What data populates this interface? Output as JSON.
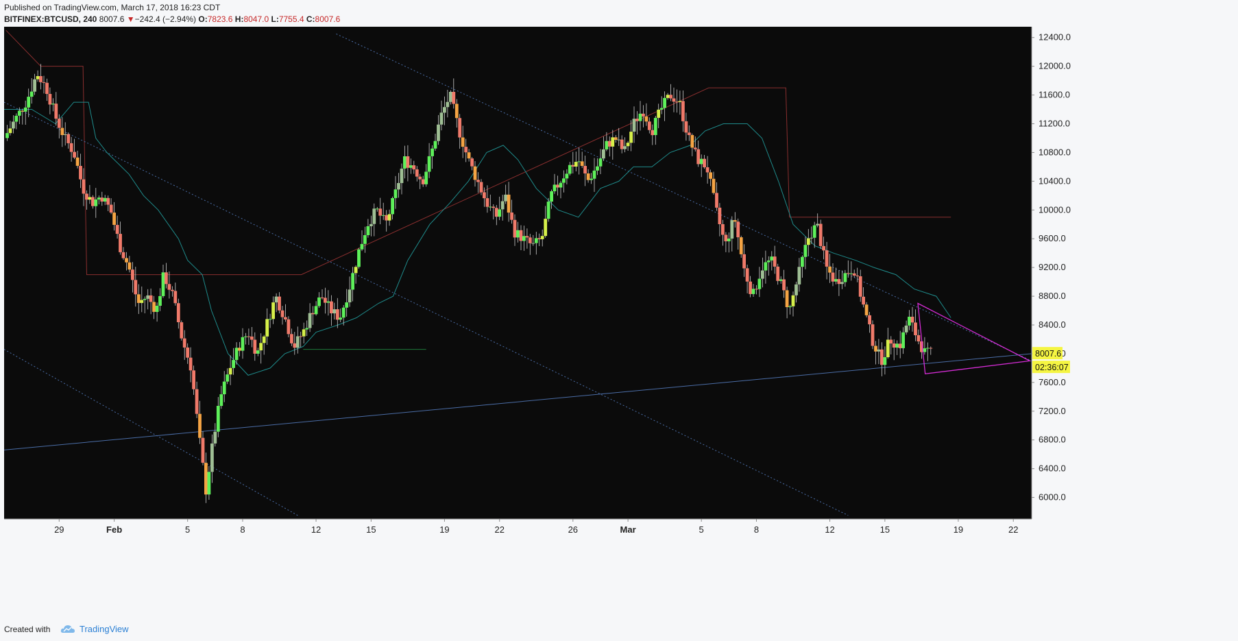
{
  "header": {
    "published": "Published on TradingView.com, March 17, 2018 16:23 CDT",
    "symbol": "BITFINEX:BTCUSD, 240",
    "last": "8007.6",
    "change_arrow": "▼",
    "change": "−242.4 (−2.94%)",
    "open_label": "O:",
    "open": "7823.6",
    "high_label": "H:",
    "high": "8047.0",
    "low_label": "L:",
    "low": "7755.4",
    "close_label": "C:",
    "close": "8007.6"
  },
  "footer": {
    "created_with": "Created with",
    "brand": "TradingView",
    "logo_icon": "tradingview-cloud-icon"
  },
  "colors": {
    "background": "#0b0b0b",
    "bull_strong": "#5ef05a",
    "bull_mid": "#d6f04a",
    "bull_pale": "#9fbf94",
    "bear": "#f07a6a",
    "bear_orange": "#f5a444",
    "cloud_line": "#1f8c8c",
    "channel_line": "#8b2f2f",
    "trend_blue": "#4b6ea8",
    "triangle": "#d62cd6",
    "price_tag": "#f5f542",
    "support_green": "#1f7a3a"
  },
  "chart_data": {
    "type": "candlestick",
    "symbol": "BITFINEX:BTCUSD",
    "timeframe": "240",
    "ylim": [
      5700,
      12550
    ],
    "y_ticks": [
      6000,
      6400,
      6800,
      7200,
      7600,
      8000,
      8400,
      8800,
      9200,
      9600,
      10000,
      10400,
      10800,
      11200,
      11600,
      12000,
      12400
    ],
    "y_tick_labels": [
      "6000.0",
      "6400.0",
      "6800.0",
      "7200.0",
      "7600.0",
      "8000.0",
      "8400.0",
      "8800.0",
      "9200.0",
      "9600.0",
      "10000.0",
      "10400.0",
      "10800.0",
      "11200.0",
      "11600.0",
      "12000.0",
      "12400.0"
    ],
    "x_ticks": [
      {
        "label": "29",
        "day": 29,
        "bold": false
      },
      {
        "label": "Feb",
        "day": 32,
        "bold": true
      },
      {
        "label": "5",
        "day": 36,
        "bold": false
      },
      {
        "label": "8",
        "day": 39,
        "bold": false
      },
      {
        "label": "12",
        "day": 43,
        "bold": false
      },
      {
        "label": "15",
        "day": 46,
        "bold": false
      },
      {
        "label": "19",
        "day": 50,
        "bold": false
      },
      {
        "label": "22",
        "day": 53,
        "bold": false
      },
      {
        "label": "26",
        "day": 57,
        "bold": false
      },
      {
        "label": "Mar",
        "day": 60,
        "bold": true
      },
      {
        "label": "5",
        "day": 64,
        "bold": false
      },
      {
        "label": "8",
        "day": 67,
        "bold": false
      },
      {
        "label": "12",
        "day": 71,
        "bold": false
      },
      {
        "label": "15",
        "day": 74,
        "bold": false
      },
      {
        "label": "19",
        "day": 78,
        "bold": false
      },
      {
        "label": "22",
        "day": 81,
        "bold": false
      }
    ],
    "x_range_days": [
      26.0,
      82.0
    ],
    "last_price": 8007.6,
    "last_price_label": "8007.6",
    "countdown": "02:36:07",
    "close_path": [
      {
        "day": 26.0,
        "price": 11000
      },
      {
        "day": 26.7,
        "price": 11300
      },
      {
        "day": 27.2,
        "price": 11500
      },
      {
        "day": 27.8,
        "price": 11900
      },
      {
        "day": 28.3,
        "price": 11700
      },
      {
        "day": 28.8,
        "price": 11300
      },
      {
        "day": 29.3,
        "price": 11000
      },
      {
        "day": 29.8,
        "price": 10800
      },
      {
        "day": 30.3,
        "price": 10300
      },
      {
        "day": 30.8,
        "price": 10100
      },
      {
        "day": 31.3,
        "price": 10200
      },
      {
        "day": 31.8,
        "price": 10000
      },
      {
        "day": 32.3,
        "price": 9500
      },
      {
        "day": 32.8,
        "price": 9200
      },
      {
        "day": 33.3,
        "price": 8700
      },
      {
        "day": 33.8,
        "price": 8800
      },
      {
        "day": 34.3,
        "price": 8600
      },
      {
        "day": 34.7,
        "price": 9100
      },
      {
        "day": 35.2,
        "price": 8800
      },
      {
        "day": 35.7,
        "price": 8200
      },
      {
        "day": 36.2,
        "price": 7800
      },
      {
        "day": 36.6,
        "price": 6900
      },
      {
        "day": 37.0,
        "price": 6100
      },
      {
        "day": 37.4,
        "price": 6800
      },
      {
        "day": 37.8,
        "price": 7400
      },
      {
        "day": 38.3,
        "price": 7800
      },
      {
        "day": 38.8,
        "price": 8100
      },
      {
        "day": 39.3,
        "price": 8300
      },
      {
        "day": 39.8,
        "price": 8000
      },
      {
        "day": 40.3,
        "price": 8400
      },
      {
        "day": 40.8,
        "price": 8800
      },
      {
        "day": 41.3,
        "price": 8500
      },
      {
        "day": 41.8,
        "price": 8100
      },
      {
        "day": 42.3,
        "price": 8300
      },
      {
        "day": 42.8,
        "price": 8600
      },
      {
        "day": 43.3,
        "price": 8800
      },
      {
        "day": 43.8,
        "price": 8600
      },
      {
        "day": 44.3,
        "price": 8500
      },
      {
        "day": 44.8,
        "price": 8900
      },
      {
        "day": 45.3,
        "price": 9400
      },
      {
        "day": 45.8,
        "price": 9800
      },
      {
        "day": 46.3,
        "price": 10000
      },
      {
        "day": 46.8,
        "price": 9800
      },
      {
        "day": 47.3,
        "price": 10200
      },
      {
        "day": 47.8,
        "price": 10700
      },
      {
        "day": 48.3,
        "price": 10600
      },
      {
        "day": 48.8,
        "price": 10400
      },
      {
        "day": 49.3,
        "price": 10800
      },
      {
        "day": 49.8,
        "price": 11300
      },
      {
        "day": 50.3,
        "price": 11600
      },
      {
        "day": 50.8,
        "price": 11100
      },
      {
        "day": 51.3,
        "price": 10700
      },
      {
        "day": 51.8,
        "price": 10400
      },
      {
        "day": 52.3,
        "price": 10100
      },
      {
        "day": 52.8,
        "price": 9900
      },
      {
        "day": 53.3,
        "price": 10200
      },
      {
        "day": 53.8,
        "price": 9700
      },
      {
        "day": 54.3,
        "price": 9600
      },
      {
        "day": 54.8,
        "price": 9500
      },
      {
        "day": 55.3,
        "price": 9600
      },
      {
        "day": 55.8,
        "price": 10200
      },
      {
        "day": 56.3,
        "price": 10400
      },
      {
        "day": 56.8,
        "price": 10600
      },
      {
        "day": 57.3,
        "price": 10700
      },
      {
        "day": 57.8,
        "price": 10400
      },
      {
        "day": 58.3,
        "price": 10600
      },
      {
        "day": 58.8,
        "price": 10900
      },
      {
        "day": 59.3,
        "price": 11000
      },
      {
        "day": 59.8,
        "price": 10800
      },
      {
        "day": 60.3,
        "price": 11200
      },
      {
        "day": 60.8,
        "price": 11400
      },
      {
        "day": 61.3,
        "price": 11100
      },
      {
        "day": 61.8,
        "price": 11400
      },
      {
        "day": 62.3,
        "price": 11600
      },
      {
        "day": 62.8,
        "price": 11500
      },
      {
        "day": 63.3,
        "price": 11000
      },
      {
        "day": 63.8,
        "price": 10700
      },
      {
        "day": 64.3,
        "price": 10600
      },
      {
        "day": 64.8,
        "price": 10000
      },
      {
        "day": 65.3,
        "price": 9500
      },
      {
        "day": 65.8,
        "price": 9900
      },
      {
        "day": 66.3,
        "price": 9200
      },
      {
        "day": 66.8,
        "price": 8800
      },
      {
        "day": 67.3,
        "price": 9200
      },
      {
        "day": 67.8,
        "price": 9300
      },
      {
        "day": 68.3,
        "price": 9000
      },
      {
        "day": 68.8,
        "price": 8600
      },
      {
        "day": 69.3,
        "price": 9100
      },
      {
        "day": 69.8,
        "price": 9600
      },
      {
        "day": 70.3,
        "price": 9800
      },
      {
        "day": 70.8,
        "price": 9200
      },
      {
        "day": 71.3,
        "price": 9000
      },
      {
        "day": 71.8,
        "price": 9100
      },
      {
        "day": 72.3,
        "price": 9200
      },
      {
        "day": 72.8,
        "price": 8700
      },
      {
        "day": 73.3,
        "price": 8200
      },
      {
        "day": 73.8,
        "price": 7900
      },
      {
        "day": 74.3,
        "price": 8200
      },
      {
        "day": 74.8,
        "price": 8100
      },
      {
        "day": 75.3,
        "price": 8500
      },
      {
        "day": 75.8,
        "price": 8200
      },
      {
        "day": 76.2,
        "price": 8000
      },
      {
        "day": 76.6,
        "price": 8007.6
      }
    ],
    "lines": [
      {
        "name": "channel-polyline",
        "kind": "polyline",
        "color_key": "channel_line",
        "points": [
          [
            26.1,
            12500
          ],
          [
            28.0,
            12000
          ],
          [
            30.3,
            12000
          ],
          [
            30.5,
            9100
          ],
          [
            34.6,
            9100
          ],
          [
            42.2,
            9100
          ],
          [
            64.4,
            11700
          ],
          [
            68.6,
            11700
          ],
          [
            68.8,
            9900
          ],
          [
            77.6,
            9900
          ]
        ]
      },
      {
        "name": "long-trendline",
        "kind": "line",
        "color_key": "trend_blue",
        "dashed": false,
        "points": [
          [
            26.0,
            6660
          ],
          [
            82.0,
            8000
          ]
        ]
      },
      {
        "name": "upper-dotted-downtrend",
        "kind": "line",
        "color_key": "trend_blue",
        "dashed": true,
        "points": [
          [
            44.1,
            12450
          ],
          [
            82.0,
            7900
          ]
        ]
      },
      {
        "name": "middle-dotted-downtrend",
        "kind": "line",
        "color_key": "trend_blue",
        "dashed": true,
        "points": [
          [
            26.0,
            11500
          ],
          [
            72.0,
            5750
          ]
        ]
      },
      {
        "name": "lower-dotted-downtrend",
        "kind": "line",
        "color_key": "trend_blue",
        "dashed": true,
        "points": [
          [
            26.0,
            8060
          ],
          [
            42.0,
            5750
          ]
        ]
      },
      {
        "name": "support-green-line",
        "kind": "line",
        "color_key": "support_green",
        "dashed": false,
        "points": [
          [
            42.3,
            8060
          ],
          [
            49.0,
            8060
          ]
        ]
      },
      {
        "name": "triangle-pattern",
        "kind": "polygon",
        "color_key": "triangle",
        "points": [
          [
            75.8,
            8700
          ],
          [
            81.9,
            7900
          ],
          [
            76.2,
            7720
          ]
        ]
      }
    ],
    "cloud_line": [
      [
        26.0,
        11400
      ],
      [
        27.5,
        11400
      ],
      [
        28.8,
        11200
      ],
      [
        29.8,
        11500
      ],
      [
        30.6,
        11500
      ],
      [
        31.0,
        11000
      ],
      [
        31.6,
        10800
      ],
      [
        32.8,
        10500
      ],
      [
        33.6,
        10200
      ],
      [
        34.4,
        10000
      ],
      [
        35.5,
        9600
      ],
      [
        36.0,
        9300
      ],
      [
        36.8,
        9100
      ],
      [
        37.3,
        8600
      ],
      [
        38.2,
        8000
      ],
      [
        39.3,
        7700
      ],
      [
        40.5,
        7800
      ],
      [
        41.3,
        8000
      ],
      [
        42.3,
        8100
      ],
      [
        43.0,
        8300
      ],
      [
        44.2,
        8400
      ],
      [
        45.2,
        8500
      ],
      [
        46.4,
        8700
      ],
      [
        47.2,
        8800
      ],
      [
        48.0,
        9300
      ],
      [
        49.2,
        9800
      ],
      [
        50.3,
        10100
      ],
      [
        51.3,
        10400
      ],
      [
        52.3,
        10800
      ],
      [
        53.2,
        10900
      ],
      [
        54.0,
        10700
      ],
      [
        55.0,
        10300
      ],
      [
        56.2,
        10000
      ],
      [
        57.3,
        9900
      ],
      [
        58.5,
        10300
      ],
      [
        59.5,
        10400
      ],
      [
        60.3,
        10600
      ],
      [
        61.3,
        10600
      ],
      [
        62.3,
        10800
      ],
      [
        63.4,
        10900
      ],
      [
        64.2,
        11100
      ],
      [
        65.2,
        11200
      ],
      [
        66.5,
        11200
      ],
      [
        67.3,
        11000
      ],
      [
        68.2,
        10400
      ],
      [
        69.0,
        9800
      ],
      [
        70.2,
        9500
      ],
      [
        71.2,
        9400
      ],
      [
        72.4,
        9300
      ],
      [
        73.4,
        9200
      ],
      [
        74.6,
        9100
      ],
      [
        75.6,
        8900
      ],
      [
        76.8,
        8800
      ],
      [
        77.6,
        8500
      ]
    ]
  }
}
